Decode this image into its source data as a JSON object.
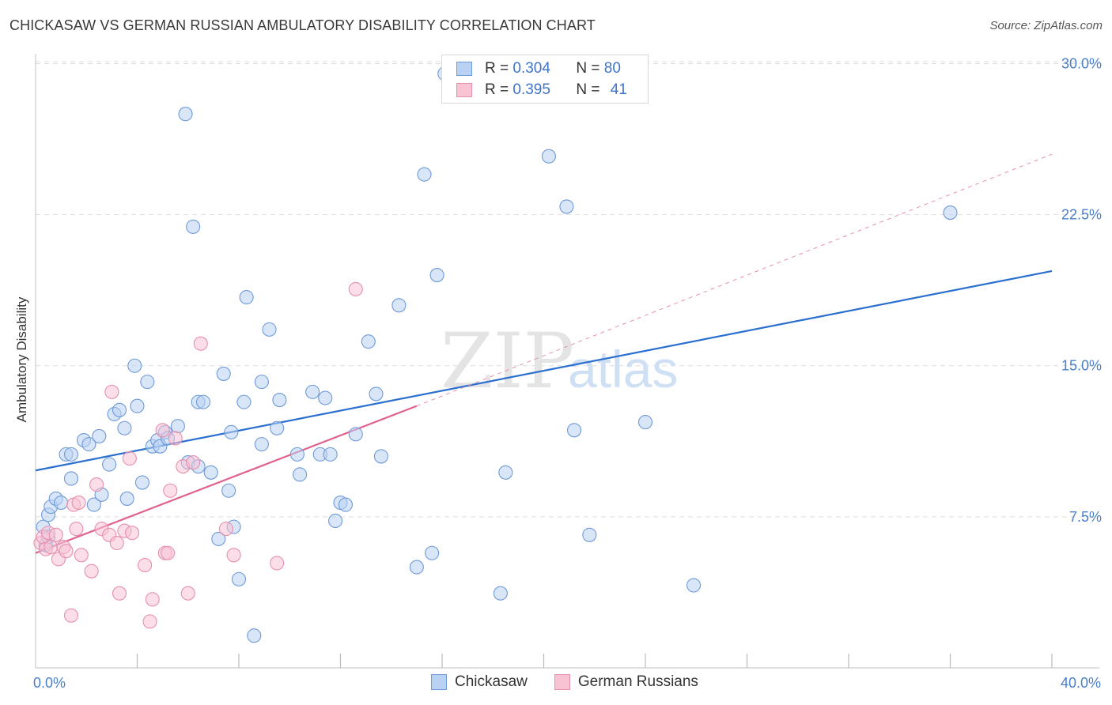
{
  "title": "CHICKASAW VS GERMAN RUSSIAN AMBULATORY DISABILITY CORRELATION CHART",
  "source": "Source: ZipAtlas.com",
  "watermark": {
    "zip": "ZIP",
    "atlas": "atlas"
  },
  "colors": {
    "blue_fill": "#b9d1f3",
    "blue_stroke": "#6f9ad8",
    "blue_line": "#2a6fcf",
    "pink_fill": "#f8c3d3",
    "pink_stroke": "#e78fae",
    "pink_line": "#e0628f",
    "tick_text": "#4a7fc8",
    "grid": "#dddddd"
  },
  "legend": {
    "rows": [
      {
        "r_label": "R = ",
        "r_value": "0.304",
        "n_label": "N = ",
        "n_value": "80",
        "series": "blue"
      },
      {
        "r_label": "R = ",
        "r_value": "0.395",
        "n_label": "N = ",
        "n_value": "41",
        "series": "pink"
      }
    ]
  },
  "bottom_legend": [
    {
      "label": "Chickasaw",
      "series": "blue"
    },
    {
      "label": "German Russians",
      "series": "pink"
    }
  ],
  "chart_data": {
    "type": "scatter",
    "title": "CHICKASAW VS GERMAN RUSSIAN AMBULATORY DISABILITY CORRELATION CHART",
    "xlabel": "",
    "ylabel": "Ambulatory Disability",
    "xlim": [
      0,
      40
    ],
    "ylim": [
      0,
      31
    ],
    "x_tick_labels": [
      {
        "value": 0,
        "label": "0.0%"
      },
      {
        "value": 40,
        "label": "40.0%"
      }
    ],
    "x_minor_ticks": [
      4,
      8,
      12,
      16,
      20,
      24,
      28,
      32,
      36,
      40
    ],
    "y_ticks": [
      {
        "value": 7.5,
        "label": "7.5%"
      },
      {
        "value": 15.0,
        "label": "15.0%"
      },
      {
        "value": 22.5,
        "label": "22.5%"
      },
      {
        "value": 30.0,
        "label": "30.0%"
      }
    ],
    "grid": true,
    "series": [
      {
        "name": "Chickasaw",
        "color": "blue",
        "r": 0.304,
        "n": 80,
        "trend": {
          "x": [
            0,
            40
          ],
          "y": [
            9.8,
            19.7
          ]
        },
        "points": [
          [
            0.3,
            7.0
          ],
          [
            0.4,
            6.1
          ],
          [
            0.5,
            6.5
          ],
          [
            0.5,
            7.6
          ],
          [
            0.6,
            8.0
          ],
          [
            0.8,
            8.4
          ],
          [
            1.0,
            8.2
          ],
          [
            1.2,
            10.6
          ],
          [
            1.4,
            10.6
          ],
          [
            1.4,
            9.4
          ],
          [
            1.9,
            11.3
          ],
          [
            2.1,
            11.1
          ],
          [
            2.3,
            8.1
          ],
          [
            2.5,
            11.5
          ],
          [
            2.6,
            8.6
          ],
          [
            2.9,
            10.1
          ],
          [
            3.1,
            12.6
          ],
          [
            3.3,
            12.8
          ],
          [
            3.5,
            11.9
          ],
          [
            3.6,
            8.4
          ],
          [
            3.9,
            15.0
          ],
          [
            4.0,
            13.0
          ],
          [
            4.2,
            9.2
          ],
          [
            4.4,
            14.2
          ],
          [
            4.6,
            11.0
          ],
          [
            4.8,
            11.3
          ],
          [
            4.9,
            11.0
          ],
          [
            5.1,
            11.7
          ],
          [
            5.2,
            11.4
          ],
          [
            5.6,
            12.0
          ],
          [
            5.9,
            27.5
          ],
          [
            6.0,
            10.2
          ],
          [
            6.2,
            21.9
          ],
          [
            6.4,
            10.0
          ],
          [
            6.4,
            13.2
          ],
          [
            6.6,
            13.2
          ],
          [
            6.9,
            9.7
          ],
          [
            7.2,
            6.4
          ],
          [
            7.4,
            14.6
          ],
          [
            7.6,
            8.8
          ],
          [
            7.7,
            11.7
          ],
          [
            7.8,
            7.0
          ],
          [
            8.0,
            4.4
          ],
          [
            8.2,
            13.2
          ],
          [
            8.3,
            18.4
          ],
          [
            8.6,
            1.6
          ],
          [
            8.9,
            14.2
          ],
          [
            8.9,
            11.1
          ],
          [
            9.2,
            16.8
          ],
          [
            9.5,
            11.9
          ],
          [
            9.6,
            13.3
          ],
          [
            10.3,
            10.6
          ],
          [
            10.4,
            9.6
          ],
          [
            10.9,
            13.7
          ],
          [
            11.2,
            10.6
          ],
          [
            11.4,
            13.4
          ],
          [
            11.6,
            10.6
          ],
          [
            11.8,
            7.3
          ],
          [
            12.0,
            8.2
          ],
          [
            12.2,
            8.1
          ],
          [
            12.6,
            11.6
          ],
          [
            13.1,
            16.2
          ],
          [
            13.4,
            13.6
          ],
          [
            13.6,
            10.5
          ],
          [
            14.3,
            18.0
          ],
          [
            15.0,
            5.0
          ],
          [
            15.3,
            24.5
          ],
          [
            15.6,
            5.7
          ],
          [
            15.8,
            19.5
          ],
          [
            16.1,
            29.5
          ],
          [
            16.5,
            29.3
          ],
          [
            18.3,
            3.7
          ],
          [
            18.5,
            9.7
          ],
          [
            20.2,
            25.4
          ],
          [
            20.9,
            22.9
          ],
          [
            21.2,
            11.8
          ],
          [
            21.8,
            6.6
          ],
          [
            24.0,
            12.2
          ],
          [
            25.9,
            4.1
          ],
          [
            36.0,
            22.6
          ]
        ]
      },
      {
        "name": "German Russians",
        "color": "pink",
        "r": 0.395,
        "n": 41,
        "trend": {
          "x": [
            0,
            15.0
          ],
          "y": [
            5.7,
            13.0
          ]
        },
        "trend_extended": {
          "x": [
            15.0,
            40
          ],
          "y": [
            13.0,
            25.5
          ]
        },
        "points": [
          [
            0.2,
            6.2
          ],
          [
            0.3,
            6.5
          ],
          [
            0.4,
            5.9
          ],
          [
            0.5,
            6.7
          ],
          [
            0.6,
            6.0
          ],
          [
            0.8,
            6.6
          ],
          [
            0.9,
            5.4
          ],
          [
            1.1,
            6.0
          ],
          [
            1.2,
            5.8
          ],
          [
            1.4,
            2.6
          ],
          [
            1.5,
            8.1
          ],
          [
            1.6,
            6.9
          ],
          [
            1.7,
            8.2
          ],
          [
            1.8,
            5.6
          ],
          [
            2.2,
            4.8
          ],
          [
            2.4,
            9.1
          ],
          [
            2.6,
            6.9
          ],
          [
            2.9,
            6.6
          ],
          [
            3.0,
            13.7
          ],
          [
            3.2,
            6.2
          ],
          [
            3.3,
            3.7
          ],
          [
            3.5,
            6.8
          ],
          [
            3.7,
            10.4
          ],
          [
            3.8,
            6.7
          ],
          [
            4.3,
            5.1
          ],
          [
            4.5,
            2.3
          ],
          [
            4.6,
            3.4
          ],
          [
            5.0,
            11.8
          ],
          [
            5.1,
            5.7
          ],
          [
            5.2,
            5.7
          ],
          [
            5.3,
            8.8
          ],
          [
            5.5,
            11.4
          ],
          [
            5.8,
            10.0
          ],
          [
            6.0,
            3.7
          ],
          [
            6.2,
            10.2
          ],
          [
            6.5,
            16.1
          ],
          [
            7.5,
            6.9
          ],
          [
            7.8,
            5.6
          ],
          [
            9.5,
            5.2
          ],
          [
            12.6,
            18.8
          ],
          [
            16.4,
            29.4
          ]
        ]
      }
    ]
  }
}
